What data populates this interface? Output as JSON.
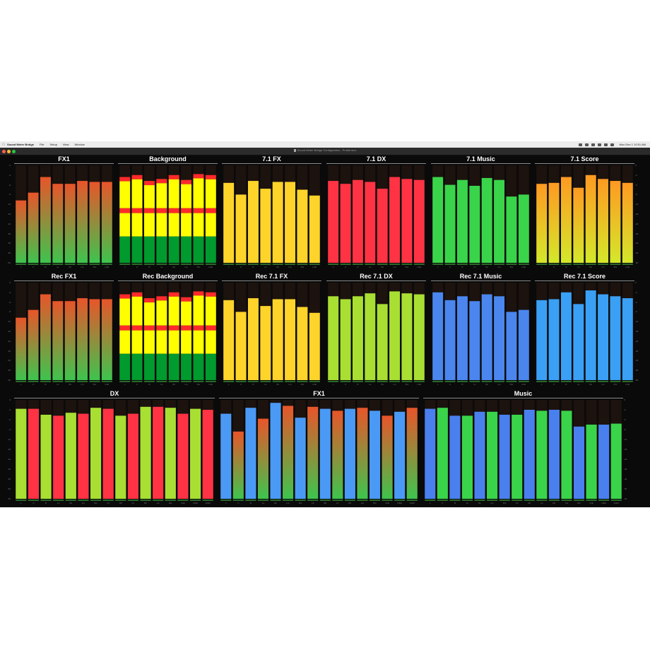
{
  "menubar": {
    "app_name": "Sound Meter Bridge",
    "menus": [
      "File",
      "Setup",
      "View",
      "Window"
    ],
    "clock": "Mon Dec 1 10:51 AM"
  },
  "window": {
    "title": "Sound Meter Bridge Configuration - Profile.smx",
    "colors": {
      "close": "#ff5f57",
      "minimize": "#febc2e",
      "zoom": "#28c840"
    }
  },
  "scale_labels": [
    "0",
    "-3",
    "-6",
    "-9",
    "-12",
    "-18",
    "-24",
    "-30",
    "-40",
    "-50",
    "-60"
  ],
  "panels": [
    {
      "name": "FX1",
      "channels": [
        "L",
        "C",
        "R",
        "Ls",
        "Rs",
        "Lrs",
        "Rrs",
        "LFE"
      ],
      "levels": [
        0.64,
        0.72,
        0.88,
        0.81,
        0.81,
        0.84,
        0.83,
        0.83
      ],
      "style": "gradient",
      "colors": [
        "#e8552a",
        "#3ec44e"
      ]
    },
    {
      "name": "Background",
      "channels": [
        "L",
        "C",
        "R",
        "Ls",
        "Rs",
        "Lrs",
        "Rrs",
        "LFE"
      ],
      "levels": [
        0.88,
        0.9,
        0.84,
        0.86,
        0.9,
        0.85,
        0.91,
        0.9
      ],
      "style": "bands",
      "colors": [
        "#ff2a2a",
        "#ffff00",
        "#009a2e"
      ]
    },
    {
      "name": "7.1 FX",
      "channels": [
        "L",
        "C",
        "R",
        "Ls",
        "Rs",
        "Lrs",
        "Rrs",
        "LFE"
      ],
      "levels": [
        0.82,
        0.7,
        0.84,
        0.76,
        0.83,
        0.83,
        0.75,
        0.69
      ],
      "style": "solid",
      "colors": [
        "#ffd42a"
      ]
    },
    {
      "name": "7.1 DX",
      "channels": [
        "L",
        "C",
        "R",
        "Ls",
        "Rs",
        "Lrs",
        "Rrs",
        "LFE"
      ],
      "levels": [
        0.84,
        0.81,
        0.85,
        0.83,
        0.76,
        0.88,
        0.86,
        0.85
      ],
      "style": "solid",
      "colors": [
        "#ff3344"
      ]
    },
    {
      "name": "7.1 Music",
      "channels": [
        "L",
        "C",
        "R",
        "Ls",
        "Rs",
        "Lrs",
        "Rrs",
        "LFE"
      ],
      "levels": [
        0.88,
        0.8,
        0.85,
        0.79,
        0.87,
        0.85,
        0.68,
        0.7
      ],
      "style": "solid",
      "colors": [
        "#3ad44a"
      ]
    },
    {
      "name": "7.1 Score",
      "channels": [
        "L",
        "C",
        "R",
        "Ls",
        "Rs",
        "Lrs",
        "Rrs",
        "LFE"
      ],
      "levels": [
        0.81,
        0.82,
        0.88,
        0.77,
        0.9,
        0.86,
        0.84,
        0.82
      ],
      "style": "gradient",
      "colors": [
        "#ff9a22",
        "#d4e82a"
      ]
    },
    {
      "name": "Rec FX1",
      "channels": [
        "L",
        "C",
        "R",
        "Ls",
        "Rs",
        "Lrs",
        "Rrs",
        "LFE"
      ],
      "levels": [
        0.64,
        0.72,
        0.88,
        0.81,
        0.81,
        0.84,
        0.83,
        0.83
      ],
      "style": "gradient",
      "colors": [
        "#e8552a",
        "#3ec44e"
      ]
    },
    {
      "name": "Rec Background",
      "channels": [
        "L",
        "C",
        "R",
        "Ls",
        "Rs",
        "Lrs",
        "Rrs",
        "LFE"
      ],
      "levels": [
        0.88,
        0.9,
        0.84,
        0.86,
        0.9,
        0.85,
        0.91,
        0.9
      ],
      "style": "bands",
      "colors": [
        "#ff2a2a",
        "#ffff00",
        "#009a2e"
      ]
    },
    {
      "name": "Rec 7.1 FX",
      "channels": [
        "L",
        "C",
        "R",
        "Ls",
        "Rs",
        "Lrs",
        "Rrs",
        "LFE"
      ],
      "levels": [
        0.82,
        0.7,
        0.84,
        0.76,
        0.83,
        0.83,
        0.75,
        0.69
      ],
      "style": "solid",
      "colors": [
        "#ffd42a"
      ]
    },
    {
      "name": "Rec 7.1 DX",
      "channels": [
        "L",
        "C",
        "R",
        "Ls",
        "Rs",
        "Lrs",
        "Rrs",
        "LFE"
      ],
      "levels": [
        0.86,
        0.83,
        0.86,
        0.89,
        0.78,
        0.91,
        0.89,
        0.88
      ],
      "style": "solid",
      "colors": [
        "#a8df32"
      ]
    },
    {
      "name": "Rec 7.1 Music",
      "channels": [
        "L",
        "C",
        "R",
        "Ls",
        "Rs",
        "Lrs",
        "Rrs",
        "LFE"
      ],
      "levels": [
        0.9,
        0.82,
        0.86,
        0.81,
        0.88,
        0.86,
        0.7,
        0.72
      ],
      "style": "solid",
      "colors": [
        "#4a86ee"
      ]
    },
    {
      "name": "Rec 7.1 Score",
      "channels": [
        "L",
        "C",
        "R",
        "Ls",
        "Rs",
        "Lrs",
        "Rrs",
        "LFE"
      ],
      "levels": [
        0.82,
        0.83,
        0.9,
        0.78,
        0.92,
        0.88,
        0.86,
        0.84
      ],
      "style": "solid",
      "colors": [
        "#3aa0f5"
      ]
    },
    {
      "name": "DX",
      "channels": [
        "L",
        "C",
        "R",
        "Ls",
        "Rs",
        "Lrs",
        "Rrs",
        "Ltf",
        "Rtf",
        "Ltr",
        "Rtr",
        "Lts",
        "Rts",
        "LFE",
        "LFE2",
        "LFE3"
      ],
      "levels": [
        0.91,
        0.91,
        0.85,
        0.84,
        0.87,
        0.86,
        0.92,
        0.91,
        0.84,
        0.86,
        0.93,
        0.93,
        0.92,
        0.86,
        0.91,
        0.9
      ],
      "style": "alternate",
      "colors": [
        "#a8df32",
        "#ff3344"
      ]
    },
    {
      "name": "FX1",
      "channels": [
        "L",
        "C",
        "R",
        "Ls",
        "Rs",
        "Lrs",
        "Rrs",
        "Ltf",
        "Rtf",
        "Ltr",
        "Rtr",
        "Lts",
        "Rts",
        "LFE",
        "LFE2",
        "LFE3"
      ],
      "levels": [
        0.86,
        0.68,
        0.92,
        0.81,
        0.97,
        0.94,
        0.82,
        0.93,
        0.91,
        0.89,
        0.91,
        0.92,
        0.89,
        0.84,
        0.88,
        0.92
      ],
      "style": "gradient-alternate",
      "colors": [
        "#4a9af5",
        "#e8552a",
        "#3ec44e"
      ]
    },
    {
      "name": "Music",
      "channels": [
        "L",
        "C",
        "R",
        "Ls",
        "Rs",
        "Lrs",
        "Rrs",
        "Ltf",
        "Rtf",
        "Ltr",
        "Rtr",
        "Lts",
        "Rts",
        "LFE",
        "LFE2",
        "LFE3"
      ],
      "levels": [
        0.91,
        0.92,
        0.84,
        0.84,
        0.88,
        0.88,
        0.85,
        0.85,
        0.9,
        0.89,
        0.9,
        0.89,
        0.73,
        0.75,
        0.75,
        0.76
      ],
      "style": "alternate",
      "colors": [
        "#4a7fee",
        "#3ad44a"
      ]
    }
  ],
  "bottom_channel_labels": [
    "L",
    "C",
    "R",
    "Ls",
    "Rs",
    "Lrs",
    "Rrs",
    "LFE"
  ]
}
